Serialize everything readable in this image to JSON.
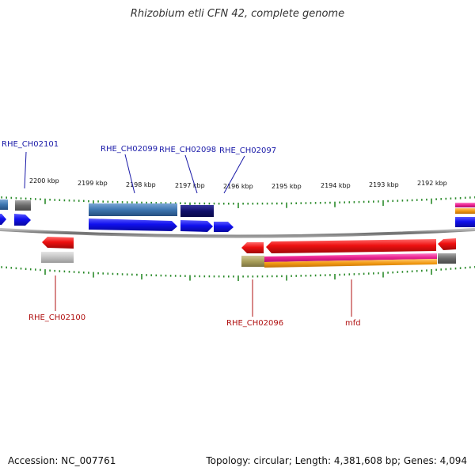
{
  "title": "Rhizobium etli CFN 42, complete genome",
  "footer": {
    "accession": "Accession: NC_007761",
    "stats": "Topology: circular; Length: 4,381,608 bp; Genes: 4,094"
  },
  "ticks": [
    "2200 kbp",
    "2199 kbp",
    "2198 kbp",
    "2197 kbp",
    "2196 kbp",
    "2195 kbp",
    "2194 kbp",
    "2193 kbp",
    "2192 kbp"
  ],
  "gene_labels_top": [
    "RHE_CH02101",
    "RHE_CH02099",
    "RHE_CH02098",
    "RHE_CH02097"
  ],
  "gene_labels_bottom": [
    "RHE_CH02100",
    "RHE_CH02096",
    "mfd"
  ],
  "colors": {
    "forward_cds": "#1010ee",
    "reverse_cds": "#ee1010",
    "tick_green": "#2a8a2a",
    "backbone": "#777777",
    "label_blue": "#1a1aa8",
    "label_red": "#b01010"
  }
}
